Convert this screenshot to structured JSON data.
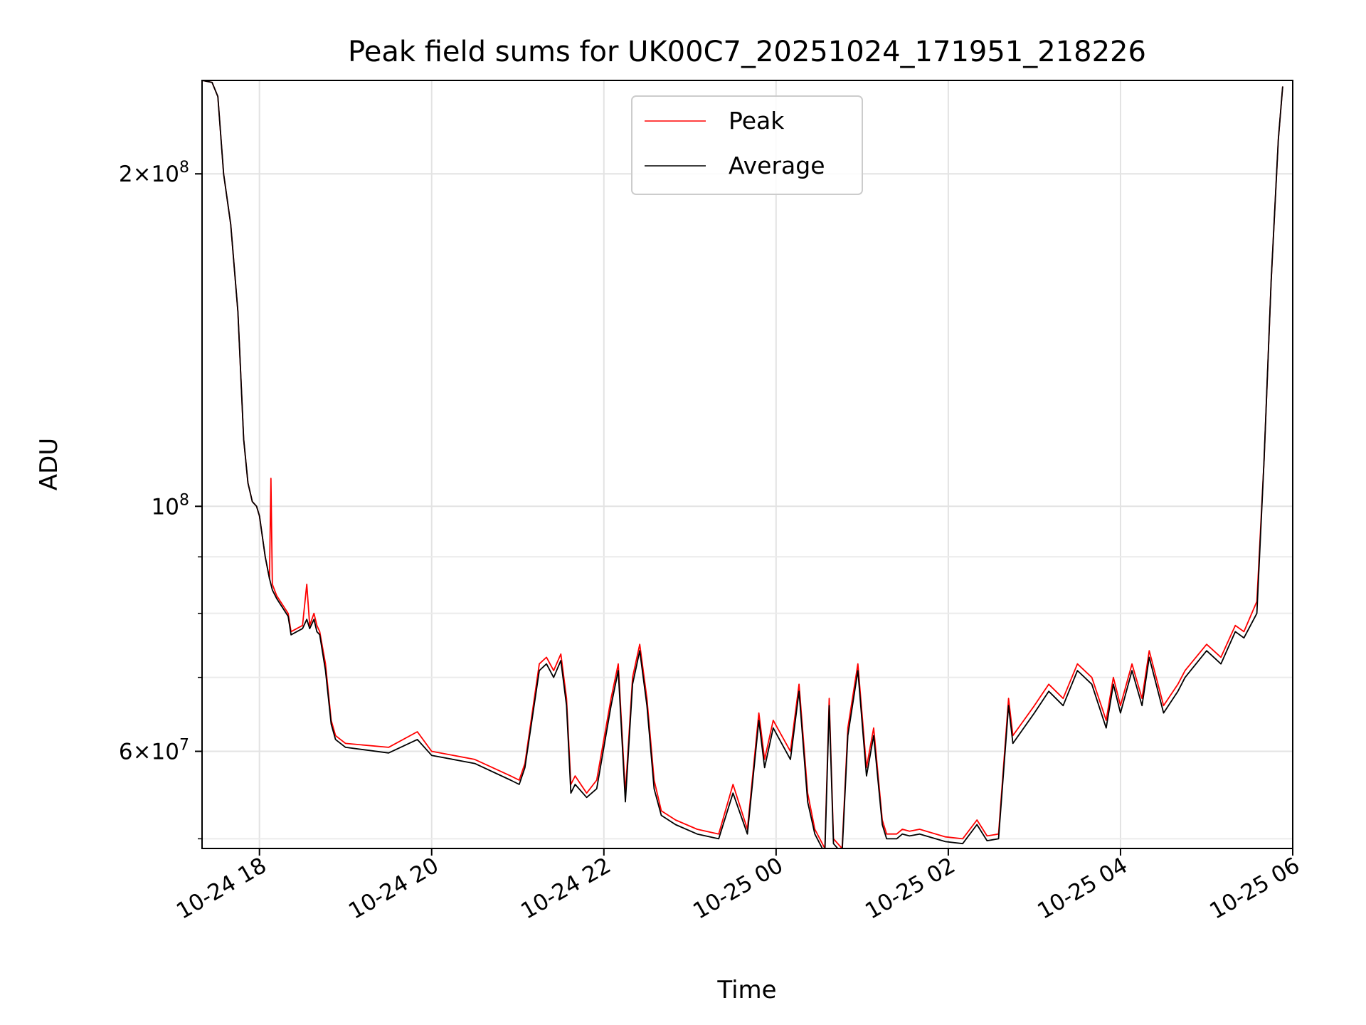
{
  "chart_data": {
    "type": "line",
    "title": "Peak field sums for UK00C7_20251024_171951_218226",
    "xlabel": "Time",
    "ylabel": "ADU",
    "yscale": "log",
    "x_unit": "hours",
    "xlim": [
      "10-24 17:20",
      "10-25 06:00"
    ],
    "ylim": [
      49000000,
      243000000
    ],
    "x_ticks": [
      {
        "label": "10-24 18",
        "time": "10-24 18:00"
      },
      {
        "label": "10-24 20",
        "time": "10-24 20:00"
      },
      {
        "label": "10-24 22",
        "time": "10-24 22:00"
      },
      {
        "label": "10-25 00",
        "time": "10-25 00:00"
      },
      {
        "label": "10-25 02",
        "time": "10-25 02:00"
      },
      {
        "label": "10-25 04",
        "time": "10-25 04:00"
      },
      {
        "label": "10-25 06",
        "time": "10-25 06:00"
      }
    ],
    "y_ticks": [
      {
        "label_base": "6×10",
        "label_exp": "7",
        "value": 60000000
      },
      {
        "label_base": "10",
        "label_exp": "8",
        "value": 100000000
      },
      {
        "label_base": "2×10",
        "label_exp": "8",
        "value": 200000000
      }
    ],
    "y_minor_ticks": [
      50000000,
      70000000,
      80000000,
      90000000
    ],
    "grid": true,
    "legend_position": "upper center",
    "series": [
      {
        "name": "Peak",
        "color": "#ff0000",
        "x": [
          "10-24 17:20",
          "10-24 17:27",
          "10-24 17:31",
          "10-24 17:35",
          "10-24 17:40",
          "10-24 17:45",
          "10-24 17:49",
          "10-24 17:52",
          "10-24 17:55",
          "10-24 17:58",
          "10-24 18:00",
          "10-24 18:04",
          "10-24 18:07",
          "10-24 18:08",
          "10-24 18:09",
          "10-24 18:12",
          "10-24 18:20",
          "10-24 18:22",
          "10-24 18:30",
          "10-24 18:33",
          "10-24 18:35",
          "10-24 18:38",
          "10-24 18:40",
          "10-24 18:42",
          "10-24 18:46",
          "10-24 18:50",
          "10-24 18:53",
          "10-24 19:00",
          "10-24 19:30",
          "10-24 19:50",
          "10-24 20:00",
          "10-24 20:30",
          "10-24 20:55",
          "10-24 21:01",
          "10-24 21:05",
          "10-24 21:15",
          "10-24 21:20",
          "10-24 21:25",
          "10-24 21:30",
          "10-24 21:34",
          "10-24 21:37",
          "10-24 21:40",
          "10-24 21:48",
          "10-24 21:55",
          "10-24 22:05",
          "10-24 22:10",
          "10-24 22:15",
          "10-24 22:20",
          "10-24 22:25",
          "10-24 22:30",
          "10-24 22:35",
          "10-24 22:40",
          "10-24 22:50",
          "10-24 23:05",
          "10-24 23:20",
          "10-24 23:30",
          "10-24 23:40",
          "10-24 23:48",
          "10-24 23:52",
          "10-24 23:58",
          "10-25 00:10",
          "10-25 00:16",
          "10-25 00:22",
          "10-25 00:27",
          "10-25 00:34",
          "10-25 00:37",
          "10-25 00:40",
          "10-25 00:46",
          "10-25 00:50",
          "10-25 00:57",
          "10-25 01:03",
          "10-25 01:08",
          "10-25 01:14",
          "10-25 01:17",
          "10-25 01:24",
          "10-25 01:28",
          "10-25 01:33",
          "10-25 01:40",
          "10-25 01:58",
          "10-25 02:10",
          "10-25 02:20",
          "10-25 02:27",
          "10-25 02:35",
          "10-25 02:42",
          "10-25 02:45",
          "10-25 03:00",
          "10-25 03:10",
          "10-25 03:20",
          "10-25 03:30",
          "10-25 03:40",
          "10-25 03:50",
          "10-25 03:55",
          "10-25 04:00",
          "10-25 04:08",
          "10-25 04:15",
          "10-25 04:20",
          "10-25 04:30",
          "10-25 04:40",
          "10-25 04:45",
          "10-25 05:00",
          "10-25 05:10",
          "10-25 05:20",
          "10-25 05:26",
          "10-25 05:35",
          "10-25 05:40",
          "10-25 05:45",
          "10-25 05:50",
          "10-25 05:53"
        ],
        "values": [
          243000000,
          242000000,
          235000000,
          200000000,
          180000000,
          150000000,
          115000000,
          105000000,
          101000000,
          100000000,
          98000000,
          90000000,
          86000000,
          106000000,
          85000000,
          83000000,
          80000000,
          77000000,
          78000000,
          85000000,
          78000000,
          80000000,
          78000000,
          77000000,
          72000000,
          64000000,
          62000000,
          61000000,
          60500000,
          62500000,
          60000000,
          59000000,
          57000000,
          56500000,
          58500000,
          72000000,
          73000000,
          71000000,
          73500000,
          67000000,
          56000000,
          57000000,
          55000000,
          56500000,
          67000000,
          72000000,
          55000000,
          70000000,
          75000000,
          67000000,
          56500000,
          53000000,
          52000000,
          51000000,
          50500000,
          56000000,
          51000000,
          65000000,
          59000000,
          64000000,
          60000000,
          69000000,
          55000000,
          51000000,
          49000000,
          67000000,
          50000000,
          49000000,
          63000000,
          72000000,
          58000000,
          63000000,
          52000000,
          50500000,
          50500000,
          51000000,
          50800000,
          51000000,
          50200000,
          50000000,
          52000000,
          50300000,
          50500000,
          67000000,
          62000000,
          66000000,
          69000000,
          67000000,
          72000000,
          70000000,
          64000000,
          70000000,
          66000000,
          72000000,
          67000000,
          74000000,
          66000000,
          69000000,
          71000000,
          75000000,
          73000000,
          78000000,
          77000000,
          82000000,
          110000000,
          160000000,
          215000000,
          240000000
        ]
      },
      {
        "name": "Average",
        "color": "#000000",
        "x": [
          "10-24 17:20",
          "10-24 17:27",
          "10-24 17:31",
          "10-24 17:35",
          "10-24 17:40",
          "10-24 17:45",
          "10-24 17:49",
          "10-24 17:52",
          "10-24 17:55",
          "10-24 17:58",
          "10-24 18:00",
          "10-24 18:04",
          "10-24 18:07",
          "10-24 18:09",
          "10-24 18:12",
          "10-24 18:20",
          "10-24 18:22",
          "10-24 18:30",
          "10-24 18:33",
          "10-24 18:35",
          "10-24 18:38",
          "10-24 18:40",
          "10-24 18:42",
          "10-24 18:46",
          "10-24 18:50",
          "10-24 18:53",
          "10-24 19:00",
          "10-24 19:30",
          "10-24 19:50",
          "10-24 20:00",
          "10-24 20:30",
          "10-24 20:55",
          "10-24 21:01",
          "10-24 21:05",
          "10-24 21:15",
          "10-24 21:20",
          "10-24 21:25",
          "10-24 21:30",
          "10-24 21:34",
          "10-24 21:37",
          "10-24 21:40",
          "10-24 21:48",
          "10-24 21:55",
          "10-24 22:05",
          "10-24 22:10",
          "10-24 22:15",
          "10-24 22:20",
          "10-24 22:25",
          "10-24 22:30",
          "10-24 22:35",
          "10-24 22:40",
          "10-24 22:50",
          "10-24 23:05",
          "10-24 23:20",
          "10-24 23:30",
          "10-24 23:40",
          "10-24 23:48",
          "10-24 23:52",
          "10-24 23:58",
          "10-25 00:10",
          "10-25 00:16",
          "10-25 00:22",
          "10-25 00:27",
          "10-25 00:34",
          "10-25 00:37",
          "10-25 00:40",
          "10-25 00:46",
          "10-25 00:50",
          "10-25 00:57",
          "10-25 01:03",
          "10-25 01:08",
          "10-25 01:14",
          "10-25 01:17",
          "10-25 01:24",
          "10-25 01:28",
          "10-25 01:33",
          "10-25 01:40",
          "10-25 01:58",
          "10-25 02:10",
          "10-25 02:20",
          "10-25 02:27",
          "10-25 02:35",
          "10-25 02:42",
          "10-25 02:45",
          "10-25 03:00",
          "10-25 03:10",
          "10-25 03:20",
          "10-25 03:30",
          "10-25 03:40",
          "10-25 03:50",
          "10-25 03:55",
          "10-25 04:00",
          "10-25 04:08",
          "10-25 04:15",
          "10-25 04:20",
          "10-25 04:30",
          "10-25 04:40",
          "10-25 04:45",
          "10-25 05:00",
          "10-25 05:10",
          "10-25 05:20",
          "10-25 05:26",
          "10-25 05:35",
          "10-25 05:40",
          "10-25 05:45",
          "10-25 05:50",
          "10-25 05:53"
        ],
        "values": [
          243000000,
          242000000,
          235000000,
          200000000,
          180000000,
          150000000,
          115000000,
          105000000,
          101000000,
          100000000,
          98000000,
          90000000,
          86000000,
          84000000,
          82500000,
          79500000,
          76500000,
          77500000,
          79000000,
          77500000,
          79000000,
          77000000,
          76500000,
          71000000,
          63500000,
          61500000,
          60500000,
          59800000,
          61500000,
          59500000,
          58500000,
          56500000,
          56000000,
          58000000,
          71000000,
          72000000,
          70000000,
          72500000,
          66000000,
          55000000,
          56000000,
          54500000,
          55500000,
          66000000,
          71000000,
          54000000,
          69000000,
          74000000,
          66000000,
          55500000,
          52500000,
          51500000,
          50500000,
          50000000,
          55000000,
          50500000,
          64000000,
          58000000,
          63000000,
          59000000,
          68000000,
          54000000,
          50500000,
          48500000,
          66000000,
          49500000,
          48500000,
          62000000,
          71000000,
          57000000,
          62000000,
          51500000,
          50000000,
          50000000,
          50500000,
          50300000,
          50500000,
          49700000,
          49500000,
          51500000,
          49800000,
          50000000,
          66000000,
          61000000,
          65000000,
          68000000,
          66000000,
          71000000,
          69000000,
          63000000,
          69000000,
          65000000,
          71000000,
          66000000,
          73000000,
          65000000,
          68000000,
          70000000,
          74000000,
          72000000,
          77000000,
          76000000,
          80000000,
          110000000,
          160000000,
          215000000,
          240000000
        ]
      }
    ]
  }
}
